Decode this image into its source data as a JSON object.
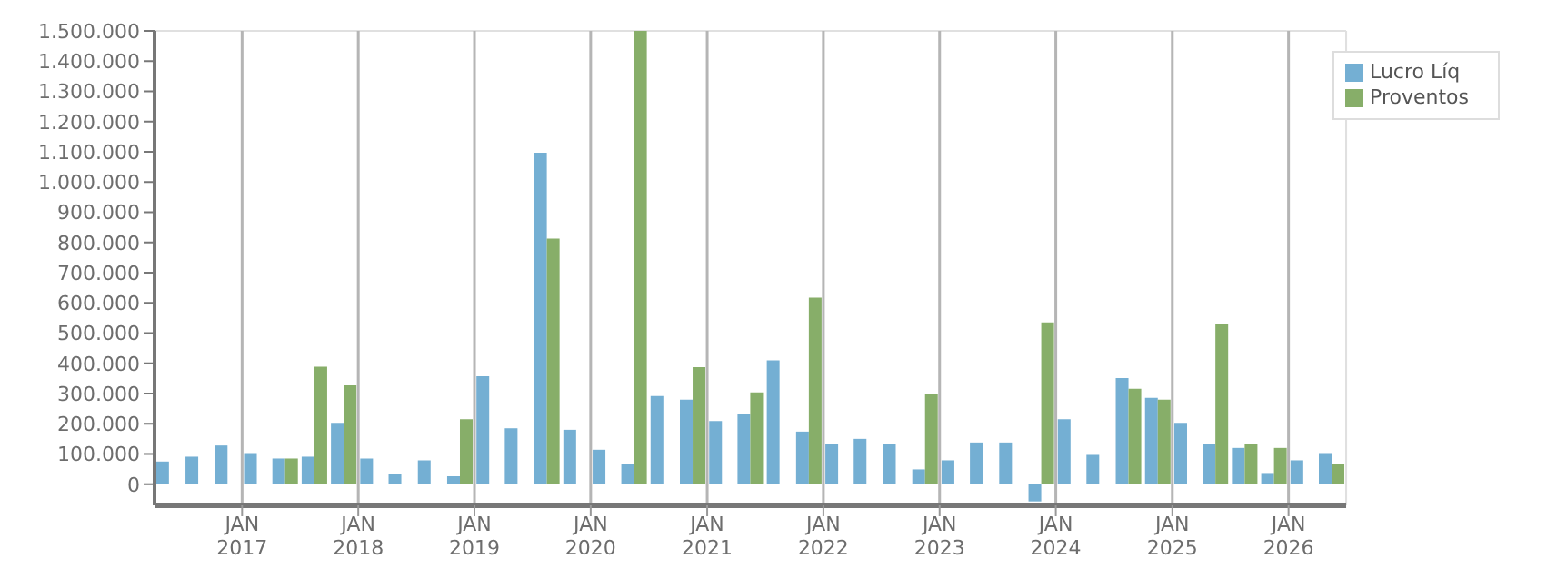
{
  "chart_data": {
    "type": "bar",
    "x": [
      "2016-05-15",
      "2016-08-15",
      "2016-11-15",
      "2017-02-15",
      "2017-05-15",
      "2017-08-15",
      "2017-11-15",
      "2018-02-15",
      "2018-05-15",
      "2018-08-15",
      "2018-11-15",
      "2019-02-15",
      "2019-05-15",
      "2019-08-15",
      "2019-11-15",
      "2020-02-15",
      "2020-05-15",
      "2020-08-15",
      "2020-11-15",
      "2021-02-15",
      "2021-05-15",
      "2021-08-15",
      "2021-11-15",
      "2022-02-15",
      "2022-05-15",
      "2022-08-15",
      "2022-11-15",
      "2023-02-15",
      "2023-05-15",
      "2023-08-15",
      "2023-11-15",
      "2024-02-15",
      "2024-05-15",
      "2024-08-15",
      "2024-11-15",
      "2025-02-15",
      "2025-05-15",
      "2025-08-15",
      "2025-11-15",
      "2026-02-15",
      "2026-05-15"
    ],
    "series": [
      {
        "name": "Lucro Líq",
        "color": "#74afd3",
        "values": [
          75000,
          91000,
          128000,
          103000,
          85000,
          91000,
          203000,
          85000,
          32000,
          79000,
          26000,
          357000,
          185000,
          1097000,
          180000,
          114000,
          67000,
          292000,
          280000,
          209000,
          233000,
          410000,
          174000,
          132000,
          150000,
          132000,
          49000,
          79000,
          138000,
          138000,
          -57000,
          215000,
          97000,
          351000,
          286000,
          203000,
          132000,
          120000,
          37000,
          79000,
          103000
        ]
      },
      {
        "name": "Proventos",
        "color": "#87ae69",
        "values": [
          0,
          0,
          0,
          0,
          85000,
          389000,
          327000,
          0,
          0,
          0,
          215000,
          0,
          0,
          813000,
          0,
          0,
          1500000,
          0,
          387000,
          0,
          304000,
          0,
          617000,
          0,
          0,
          0,
          298000,
          0,
          0,
          0,
          535000,
          0,
          0,
          316000,
          280000,
          0,
          529000,
          132000,
          120000,
          0,
          67000
        ]
      }
    ],
    "xlim": [
      "2016-04-01",
      "2026-07-01"
    ],
    "xticks": [
      {
        "value": "2017-01-01",
        "label": "JAN 2017"
      },
      {
        "value": "2018-01-01",
        "label": "JAN 2018"
      },
      {
        "value": "2019-01-01",
        "label": "JAN 2019"
      },
      {
        "value": "2020-01-01",
        "label": "JAN 2020"
      },
      {
        "value": "2021-01-01",
        "label": "JAN 2021"
      },
      {
        "value": "2022-01-01",
        "label": "JAN 2022"
      },
      {
        "value": "2023-01-01",
        "label": "JAN 2023"
      },
      {
        "value": "2024-01-01",
        "label": "JAN 2024"
      },
      {
        "value": "2025-01-01",
        "label": "JAN 2025"
      },
      {
        "value": "2026-01-01",
        "label": "JAN 2026"
      }
    ],
    "ylim": [
      -70000,
      1500000
    ],
    "yticks": [
      0,
      {
        "value": 100000,
        "label": "100.000"
      },
      {
        "value": 200000,
        "label": "200.000"
      },
      {
        "value": 300000,
        "label": "300.000"
      },
      {
        "value": 400000,
        "label": "400.000"
      },
      {
        "value": 500000,
        "label": "500.000"
      },
      {
        "value": 600000,
        "label": "600.000"
      },
      {
        "value": 700000,
        "label": "700.000"
      },
      {
        "value": 800000,
        "label": "800.000"
      },
      {
        "value": 900000,
        "label": "900.000"
      },
      {
        "value": 1000000,
        "label": "1.000.000"
      },
      {
        "value": 1100000,
        "label": "1.100.000"
      },
      {
        "value": 1200000,
        "label": "1.200.000"
      },
      {
        "value": 1300000,
        "label": "1.300.000"
      },
      {
        "value": 1400000,
        "label": "1.400.000"
      },
      {
        "value": 1500000,
        "label": "1.500.000"
      }
    ],
    "grid": true,
    "legend": "top right"
  }
}
